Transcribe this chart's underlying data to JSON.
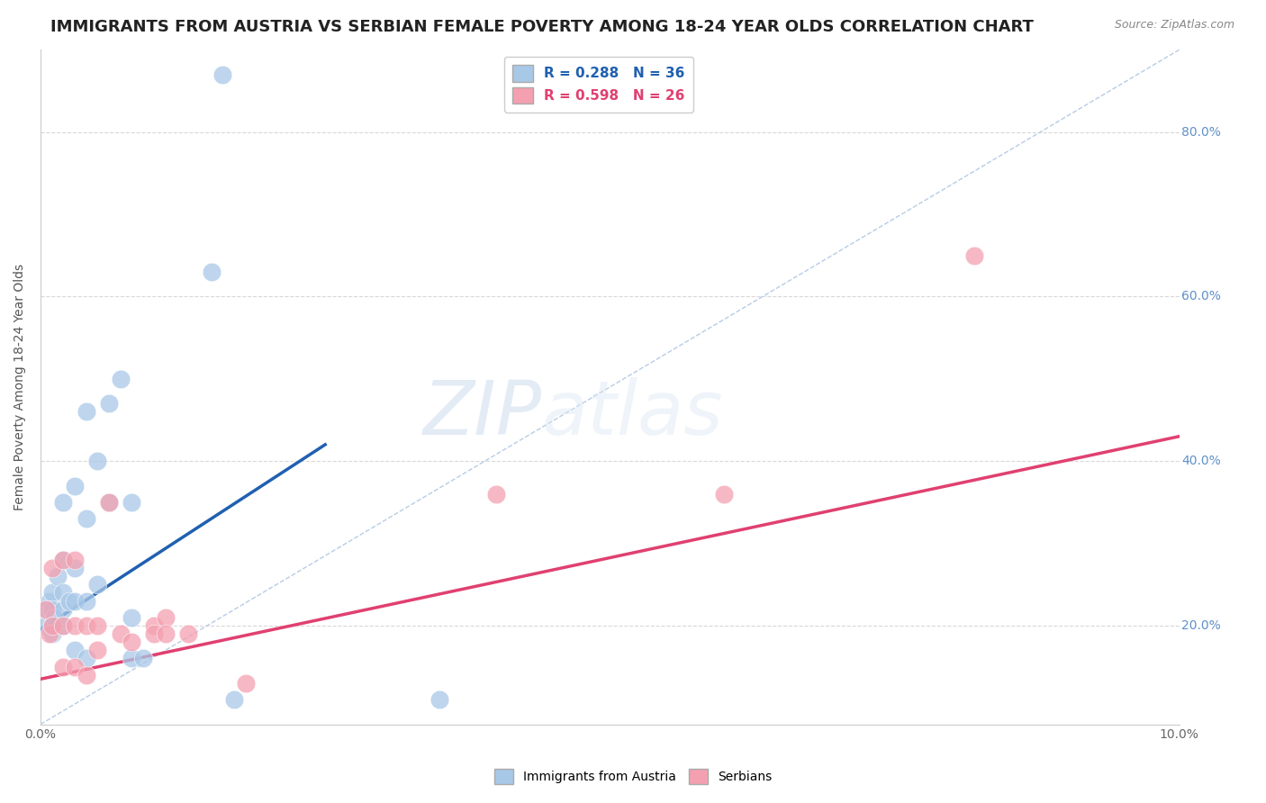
{
  "title": "IMMIGRANTS FROM AUSTRIA VS SERBIAN FEMALE POVERTY AMONG 18-24 YEAR OLDS CORRELATION CHART",
  "source": "Source: ZipAtlas.com",
  "ylabel": "Female Poverty Among 18-24 Year Olds",
  "xlim": [
    0.0,
    0.1
  ],
  "ylim": [
    0.08,
    0.9
  ],
  "austria_color": "#a8c8e8",
  "serbian_color": "#f4a0b0",
  "austria_trendline_color": "#2060b0",
  "serbian_trendline_color": "#e04070",
  "austria_R": 0.288,
  "austria_N": 36,
  "serbian_R": 0.598,
  "serbian_N": 26,
  "austria_x": [
    0.0005,
    0.0005,
    0.0008,
    0.001,
    0.001,
    0.001,
    0.001,
    0.0012,
    0.0015,
    0.002,
    0.002,
    0.002,
    0.002,
    0.002,
    0.0025,
    0.003,
    0.003,
    0.003,
    0.003,
    0.004,
    0.004,
    0.004,
    0.004,
    0.005,
    0.005,
    0.006,
    0.006,
    0.007,
    0.008,
    0.008,
    0.008,
    0.009,
    0.015,
    0.016,
    0.035,
    0.017
  ],
  "austria_y": [
    0.22,
    0.2,
    0.23,
    0.24,
    0.22,
    0.2,
    0.19,
    0.21,
    0.26,
    0.35,
    0.28,
    0.24,
    0.22,
    0.2,
    0.23,
    0.37,
    0.27,
    0.23,
    0.17,
    0.46,
    0.33,
    0.23,
    0.16,
    0.4,
    0.25,
    0.47,
    0.35,
    0.5,
    0.35,
    0.21,
    0.16,
    0.16,
    0.63,
    0.87,
    0.11,
    0.11
  ],
  "serbian_x": [
    0.0005,
    0.0008,
    0.001,
    0.001,
    0.002,
    0.002,
    0.002,
    0.003,
    0.003,
    0.003,
    0.004,
    0.004,
    0.005,
    0.005,
    0.006,
    0.007,
    0.008,
    0.01,
    0.01,
    0.011,
    0.011,
    0.013,
    0.018,
    0.04,
    0.06,
    0.082
  ],
  "serbian_y": [
    0.22,
    0.19,
    0.27,
    0.2,
    0.28,
    0.2,
    0.15,
    0.28,
    0.2,
    0.15,
    0.2,
    0.14,
    0.2,
    0.17,
    0.35,
    0.19,
    0.18,
    0.2,
    0.19,
    0.21,
    0.19,
    0.19,
    0.13,
    0.36,
    0.36,
    0.65
  ],
  "austria_trend_x": [
    0.0,
    0.025
  ],
  "austria_trend_y": [
    0.195,
    0.42
  ],
  "serbian_trend_x": [
    0.0,
    0.1
  ],
  "serbian_trend_y": [
    0.135,
    0.43
  ],
  "dashed_line_x": [
    0.0,
    0.1
  ],
  "dashed_line_y": [
    0.08,
    0.9
  ],
  "watermark_zip": "ZIP",
  "watermark_atlas": "atlas",
  "background_color": "#ffffff",
  "grid_color": "#d8d8d8",
  "right_label_color": "#6090c8",
  "title_fontsize": 13,
  "label_fontsize": 10,
  "legend_fontsize": 11,
  "ytick_vals": [
    0.2,
    0.4,
    0.6,
    0.8
  ],
  "ytick_labels_right": [
    "20.0%",
    "40.0%",
    "60.0%",
    "80.0%"
  ]
}
